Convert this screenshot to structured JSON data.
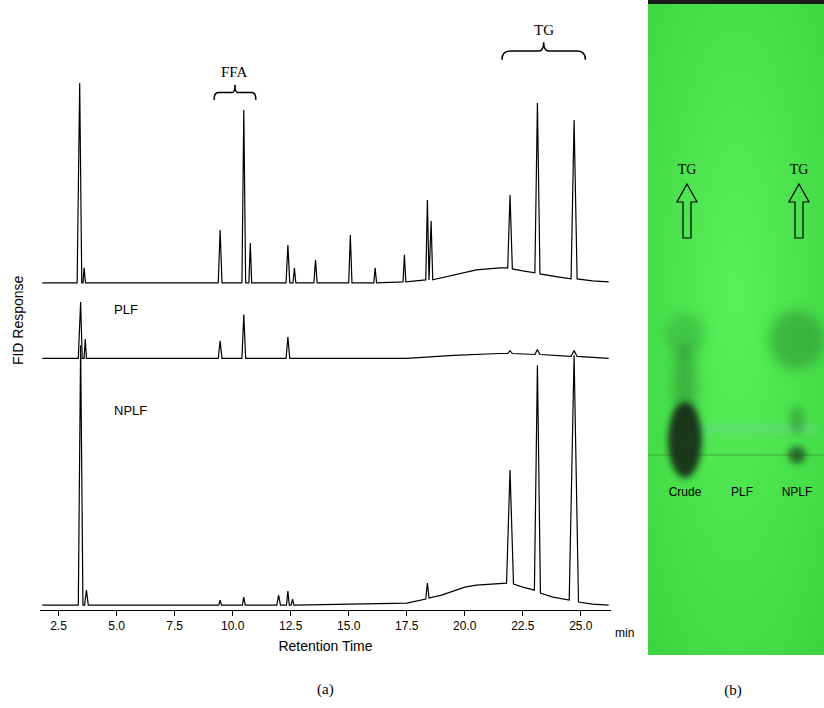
{
  "chart_data": {
    "type": "line",
    "xlabel": "Retention Time",
    "ylabel": "FID Response",
    "panel_label": "(a)",
    "tick_labels": "x",
    "grid": false,
    "xlim": [
      1.7,
      26.3
    ],
    "xticks": [
      2.5,
      {
        "value": 5,
        "label": "5.0"
      },
      7.5,
      {
        "value": 10,
        "label": "10.0"
      },
      12.5,
      {
        "value": 15,
        "label": "15.0"
      },
      17.5,
      {
        "value": 20,
        "label": "20.0"
      },
      22.5,
      {
        "value": 25,
        "label": "25.0"
      }
    ],
    "annotations": [
      {
        "text": "FFA",
        "range": [
          9.2,
          11.0
        ]
      },
      {
        "text": "TG",
        "range": [
          21.6,
          25.2
        ]
      },
      {
        "text": "min"
      }
    ],
    "series": [
      {
        "name": null,
        "color": "#000000",
        "ylim": [
          -5,
          205
        ],
        "x": [
          1.8,
          3.3,
          3.41,
          3.5,
          3.55,
          3.6,
          3.66,
          9.38,
          9.46,
          9.54,
          10.4,
          10.48,
          10.56,
          10.7,
          10.76,
          10.82,
          12.3,
          12.38,
          12.46,
          12.6,
          12.66,
          12.72,
          13.5,
          13.57,
          13.64,
          15.0,
          15.07,
          15.14,
          16.08,
          16.14,
          16.2,
          17.34,
          17.4,
          17.46,
          18.32,
          18.39,
          18.46,
          18.55,
          18.62,
          19.5,
          20.5,
          21.5,
          21.85,
          21.95,
          22.05,
          22.5,
          23.02,
          23.13,
          23.24,
          24.0,
          24.58,
          24.71,
          24.84,
          25.5,
          26.2
        ],
        "values": [
          0,
          0,
          200,
          0,
          0,
          15,
          0,
          0,
          53,
          0,
          0,
          173,
          0,
          0,
          40,
          0,
          0,
          38,
          0,
          0,
          15,
          0,
          0,
          23,
          0,
          0,
          48,
          0,
          0,
          15,
          0,
          1,
          28,
          1,
          3,
          83,
          3,
          62,
          3,
          8,
          13,
          15,
          15,
          88,
          14,
          12,
          10,
          180,
          9,
          6,
          4,
          163,
          4,
          2,
          1
        ]
      },
      {
        "name": "PLF",
        "color": "#000000",
        "ylim": [
          -5,
          65
        ],
        "x": [
          1.8,
          3.35,
          3.45,
          3.52,
          3.6,
          3.65,
          3.7,
          9.38,
          9.46,
          9.54,
          10.4,
          10.48,
          10.56,
          12.3,
          12.38,
          12.46,
          17.5,
          19.5,
          21.5,
          21.85,
          21.95,
          22.05,
          23.02,
          23.13,
          23.24,
          24.58,
          24.71,
          24.84,
          26.2
        ],
        "values": [
          0,
          0,
          58,
          0,
          0,
          20,
          0,
          0,
          18,
          0,
          0,
          45,
          0,
          0,
          22,
          0,
          0,
          3,
          5,
          5,
          8,
          5,
          4,
          9,
          4,
          2,
          8,
          2,
          0
        ]
      },
      {
        "name": "NPLF",
        "color": "#000000",
        "ylim": [
          -5,
          265
        ],
        "x": [
          1.8,
          3.35,
          3.45,
          3.55,
          3.62,
          3.7,
          3.78,
          9.4,
          9.46,
          9.52,
          10.42,
          10.48,
          10.54,
          11.9,
          11.98,
          12.06,
          12.32,
          12.38,
          12.44,
          12.52,
          12.58,
          12.64,
          17.5,
          18.0,
          18.32,
          18.39,
          18.46,
          19.0,
          19.5,
          20.0,
          20.5,
          21.0,
          21.5,
          21.8,
          21.95,
          22.1,
          22.5,
          23.0,
          23.13,
          23.26,
          23.8,
          24.5,
          24.71,
          24.9,
          25.5,
          26.2
        ],
        "values": [
          0,
          0,
          260,
          0,
          0,
          15,
          0,
          0,
          5,
          0,
          0,
          8,
          0,
          0,
          10,
          0,
          0,
          14,
          0,
          0,
          6,
          0,
          2,
          4,
          6,
          22,
          7,
          10,
          14,
          18,
          20,
          21,
          22,
          22,
          135,
          21,
          18,
          15,
          240,
          12,
          8,
          5,
          250,
          3,
          1,
          0
        ]
      }
    ]
  },
  "tlc_plate": {
    "panel_label": "(b)",
    "lanes": [
      "Crude",
      "PLF",
      "NPLF"
    ],
    "spot_labels": [
      {
        "lane": "Crude",
        "text": "TG"
      },
      {
        "lane": "NPLF",
        "text": "TG"
      }
    ]
  }
}
